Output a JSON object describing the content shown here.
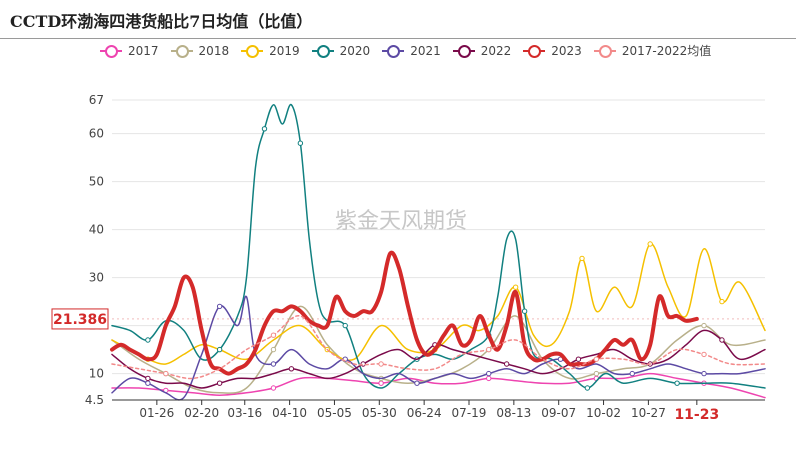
{
  "title": "CCTD环渤海四港货船比7日均值（比值）",
  "watermark": "紫金天风期货",
  "colors": {
    "2017": "#ee44b0",
    "2018": "#b8b08a",
    "2019": "#f5c000",
    "2020": "#118080",
    "2021": "#5c4aa4",
    "2022": "#7a0a4a",
    "2023": "#d42a2a",
    "2017-2022均值": "#f28a8a"
  },
  "chart_data": {
    "type": "line",
    "title": "CCTD环渤海四港货船比7日均值（比值）",
    "xlabel": "",
    "ylabel": "",
    "ylim": [
      4.5,
      67
    ],
    "ytick_labels": [
      "4.5",
      "10",
      "20",
      "30",
      "40",
      "50",
      "60",
      "67"
    ],
    "y_ticks": [
      4.5,
      10,
      20,
      30,
      40,
      50,
      60,
      67
    ],
    "x_tick_labels": [
      "01-26",
      "02-20",
      "03-16",
      "04-10",
      "05-05",
      "05-30",
      "06-24",
      "07-19",
      "08-13",
      "09-07",
      "10-02",
      "10-27",
      "11-23"
    ],
    "x_tick_days": [
      25,
      50,
      74,
      99,
      124,
      149,
      174,
      199,
      224,
      249,
      274,
      299,
      326
    ],
    "x_range_days": [
      0,
      364
    ],
    "grid": "horizontal",
    "legend": "top",
    "highlight": {
      "x_day": 326,
      "x_label": "11-23",
      "y_value": 21.386,
      "y_label": "21.386"
    },
    "series": [
      {
        "name": "2017",
        "x": [
          0,
          15,
          30,
          45,
          60,
          75,
          90,
          105,
          120,
          135,
          150,
          165,
          180,
          195,
          210,
          225,
          240,
          255,
          270,
          285,
          300,
          315,
          330,
          345,
          364
        ],
        "values": [
          7,
          7,
          6.5,
          6,
          5.5,
          6,
          7,
          9,
          9,
          8.5,
          8,
          9,
          8,
          8,
          9,
          8.5,
          8,
          8,
          9,
          9,
          10,
          9,
          8,
          7,
          5
        ]
      },
      {
        "name": "2018",
        "x": [
          0,
          15,
          30,
          45,
          60,
          75,
          90,
          105,
          120,
          135,
          150,
          165,
          180,
          195,
          210,
          225,
          240,
          255,
          270,
          285,
          300,
          315,
          330,
          345,
          364
        ],
        "values": [
          17,
          13,
          10,
          7,
          6,
          7,
          15,
          24,
          16,
          11,
          9,
          8,
          9,
          11,
          15,
          22,
          13,
          9,
          10,
          11,
          12,
          17,
          20,
          16,
          17
        ]
      },
      {
        "name": "2019",
        "x": [
          0,
          10,
          20,
          30,
          40,
          50,
          60,
          75,
          90,
          105,
          120,
          135,
          150,
          165,
          180,
          195,
          205,
          215,
          225,
          235,
          245,
          255,
          262,
          270,
          280,
          290,
          300,
          310,
          320,
          330,
          340,
          350,
          364
        ],
        "values": [
          17,
          15,
          13,
          12,
          14,
          16,
          15,
          13,
          17,
          20,
          15,
          13,
          20,
          15,
          15,
          20,
          19,
          22,
          28,
          18,
          16,
          23,
          34,
          23,
          28,
          24,
          37,
          28,
          22,
          36,
          25,
          29,
          19
        ]
      },
      {
        "name": "2020",
        "x": [
          0,
          10,
          20,
          30,
          40,
          50,
          60,
          70,
          75,
          80,
          85,
          90,
          95,
          100,
          105,
          110,
          115,
          120,
          130,
          140,
          150,
          160,
          170,
          180,
          190,
          200,
          210,
          215,
          220,
          225,
          230,
          235,
          245,
          255,
          265,
          275,
          285,
          300,
          315,
          330,
          345,
          364
        ],
        "values": [
          20,
          19,
          17,
          21,
          19,
          13,
          15,
          22,
          30,
          53,
          61,
          66,
          62,
          66,
          58,
          38,
          25,
          21,
          20,
          10,
          7,
          10,
          13,
          14,
          13,
          15,
          18,
          26,
          38,
          38,
          23,
          14,
          13,
          10,
          7,
          10,
          8,
          9,
          8,
          8,
          8,
          7
        ]
      },
      {
        "name": "2021",
        "x": [
          0,
          10,
          20,
          30,
          40,
          50,
          60,
          70,
          75,
          80,
          90,
          100,
          110,
          120,
          130,
          140,
          150,
          160,
          170,
          180,
          190,
          200,
          210,
          220,
          230,
          240,
          250,
          260,
          270,
          280,
          290,
          300,
          310,
          320,
          330,
          340,
          350,
          364
        ],
        "values": [
          6,
          9,
          8,
          6,
          5,
          14,
          24,
          20,
          26,
          14,
          12,
          15,
          12,
          11,
          13,
          10,
          9,
          10,
          8,
          9,
          10,
          9,
          10,
          11,
          10,
          12,
          13,
          11,
          12,
          10,
          10,
          11,
          12,
          11,
          10,
          10,
          10,
          11
        ]
      },
      {
        "name": "2022",
        "x": [
          0,
          10,
          20,
          30,
          40,
          50,
          60,
          70,
          80,
          90,
          100,
          110,
          120,
          130,
          140,
          150,
          160,
          170,
          180,
          190,
          200,
          210,
          220,
          230,
          240,
          250,
          260,
          270,
          280,
          290,
          300,
          310,
          320,
          330,
          340,
          350,
          364
        ],
        "values": [
          14,
          11,
          9,
          8,
          8,
          7,
          8,
          9,
          9,
          10,
          11,
          10,
          9,
          10,
          12,
          14,
          15,
          13,
          16,
          15,
          14,
          13,
          12,
          11,
          10,
          11,
          13,
          14,
          15,
          13,
          12,
          13,
          16,
          19,
          17,
          13,
          15
        ]
      },
      {
        "name": "2023",
        "x": [
          0,
          5,
          10,
          15,
          20,
          25,
          30,
          35,
          40,
          45,
          50,
          55,
          60,
          65,
          70,
          75,
          80,
          85,
          90,
          95,
          100,
          105,
          110,
          115,
          120,
          125,
          130,
          135,
          140,
          145,
          150,
          155,
          160,
          165,
          170,
          175,
          180,
          185,
          190,
          195,
          200,
          205,
          210,
          215,
          220,
          225,
          230,
          235,
          240,
          245,
          250,
          255,
          260,
          265,
          270,
          275,
          280,
          285,
          290,
          295,
          300,
          305,
          310,
          315,
          320,
          326
        ],
        "values": [
          15,
          16,
          15,
          14,
          13,
          14,
          20,
          24,
          30,
          28,
          19,
          12,
          11,
          10,
          11,
          12,
          15,
          20,
          23,
          23,
          24,
          23,
          21,
          20,
          20,
          26,
          23,
          22,
          23,
          23,
          27,
          35,
          32,
          24,
          17,
          14,
          15,
          18,
          20,
          16,
          17,
          22,
          18,
          15,
          20,
          27,
          16,
          13,
          13,
          14,
          14,
          12,
          12,
          12,
          13,
          15,
          17,
          16,
          17,
          13,
          16,
          26,
          22,
          22,
          21,
          21.4
        ]
      },
      {
        "name": "2017-2022均值",
        "x": [
          0,
          15,
          30,
          45,
          60,
          75,
          90,
          105,
          120,
          135,
          150,
          165,
          180,
          195,
          210,
          225,
          240,
          255,
          270,
          285,
          300,
          315,
          330,
          345,
          364
        ],
        "values": [
          12,
          11,
          10,
          9,
          11,
          15,
          18,
          22,
          15,
          12,
          12,
          11,
          11,
          14,
          15,
          17,
          13,
          11,
          13,
          13,
          12,
          15,
          14,
          12,
          12
        ]
      }
    ]
  }
}
